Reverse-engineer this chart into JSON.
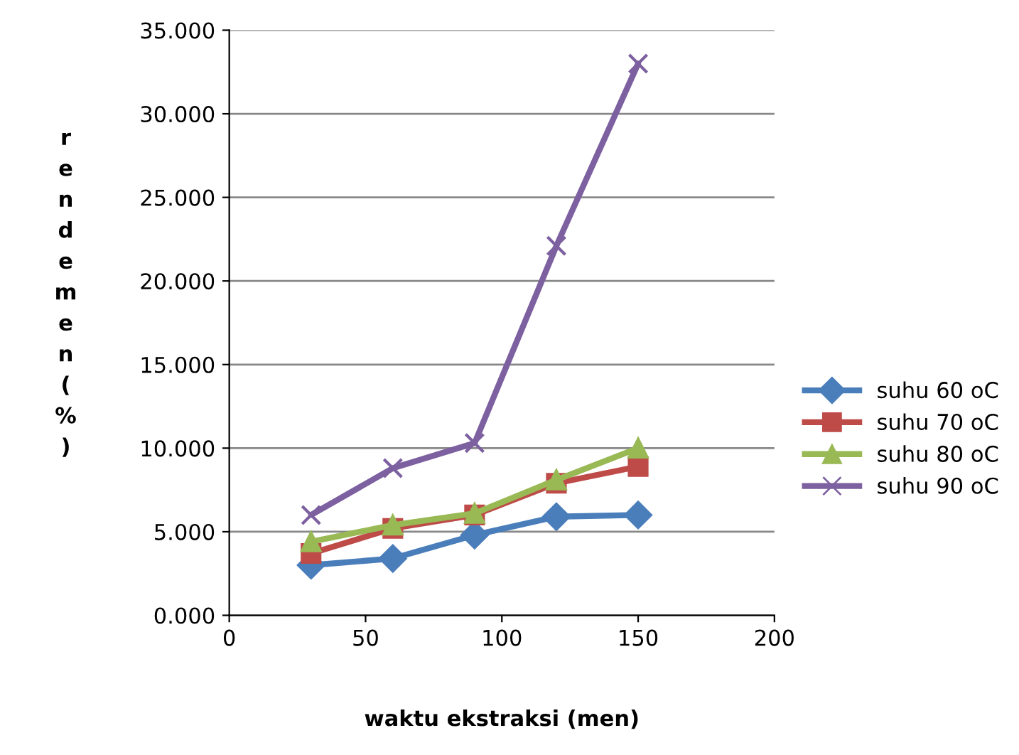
{
  "chart_data": {
    "type": "line",
    "xlabel": "waktu ekstraksi (men)",
    "ylabel": "rendemen (%)",
    "xlim": [
      0,
      200
    ],
    "xticks": [
      0,
      50,
      100,
      150,
      200
    ],
    "ylim": [
      0,
      35
    ],
    "yticks": [
      {
        "value": 0,
        "label": "0.000"
      },
      {
        "value": 5,
        "label": "5.000"
      },
      {
        "value": 10,
        "label": "10.000"
      },
      {
        "value": 15,
        "label": "15.000"
      },
      {
        "value": 20,
        "label": "20.000"
      },
      {
        "value": 25,
        "label": "25.000"
      },
      {
        "value": 30,
        "label": "30.000"
      },
      {
        "value": 35,
        "label": "35.000"
      }
    ],
    "grid": "y",
    "legend": "right",
    "x": [
      30,
      60,
      90,
      120,
      150
    ],
    "series": [
      {
        "name": "suhu 60 oC",
        "color": "#4a7ebb",
        "marker": "diamond",
        "values": [
          3.0,
          3.4,
          4.8,
          5.9,
          6.0
        ]
      },
      {
        "name": "suhu 70 oC",
        "color": "#be4b48",
        "marker": "square",
        "values": [
          3.7,
          5.2,
          6.0,
          7.9,
          8.9
        ]
      },
      {
        "name": "suhu 80 oC",
        "color": "#98b954",
        "marker": "triangle",
        "values": [
          4.4,
          5.4,
          6.1,
          8.1,
          10.0
        ]
      },
      {
        "name": "suhu 90 oC",
        "color": "#7d60a0",
        "marker": "cross",
        "values": [
          6.0,
          8.8,
          10.3,
          22.1,
          33.0
        ]
      }
    ]
  }
}
